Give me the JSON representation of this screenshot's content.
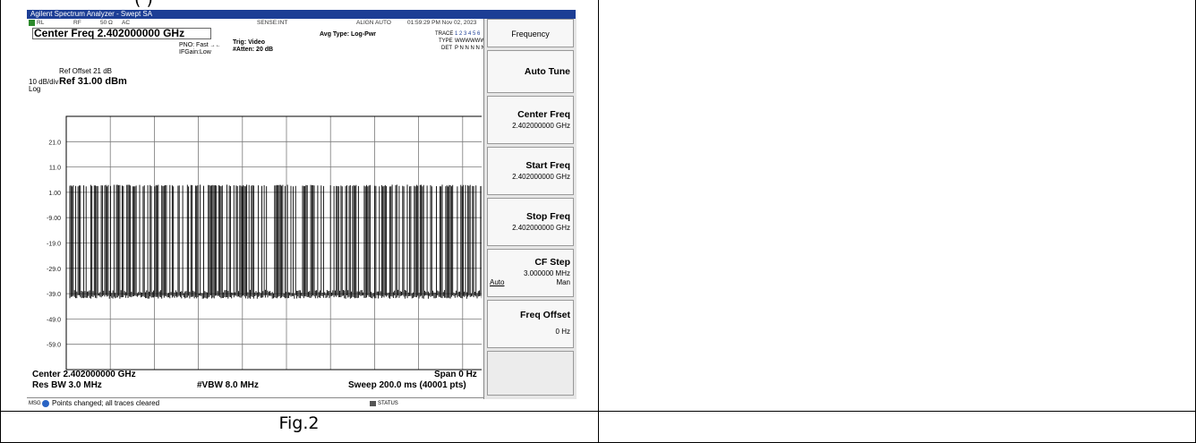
{
  "heading_fragment": "(          )",
  "caption": "Fig.2",
  "analyzer": {
    "window_title": "Agilent Spectrum Analyzer - Swept SA",
    "status": {
      "mode": "RL",
      "rf": "RF",
      "impedance": "50 Ω",
      "coupling": "AC",
      "sense": "SENSE:INT",
      "align": "ALIGN AUTO",
      "datetime": "01:59:29 PM Nov 02, 2023"
    },
    "center_freq_title": "Center Freq 2.402000000 GHz",
    "pno": "PNO: Fast",
    "ifgain": "IFGain:Low",
    "trig": "Trig: Video",
    "atten": "#Atten: 20 dB",
    "avg_type": "Avg Type: Log-Pwr",
    "trace_label": "TRACE",
    "trace_nums": "1 2 3 4 5 6",
    "type_label": "TYPE",
    "type_val": "WWWWWW",
    "det_label": "DET",
    "det_val": "P N N N N N",
    "ref_offset": "Ref Offset 21 dB",
    "ref_level": "Ref 31.00 dBm",
    "scale": "10 dB/div",
    "scale_type": "Log",
    "y_ticks": [
      "21.0",
      "11.0",
      "1.00",
      "-9.00",
      "-19.0",
      "-29.0",
      "-39.0",
      "-49.0",
      "-59.0"
    ],
    "center_bottom": "Center 2.402000000 GHz",
    "span": "Span 0 Hz",
    "res_bw": "Res BW 3.0 MHz",
    "vbw": "#VBW 8.0 MHz",
    "sweep": "Sweep  200.0 ms (40001 pts)",
    "msg_label": "MSG",
    "message": "Points changed; all traces cleared",
    "status_label": "STATUS",
    "panel": {
      "title": "Frequency",
      "auto_tune": "Auto Tune",
      "center_freq_label": "Center Freq",
      "center_freq_val": "2.402000000 GHz",
      "start_freq_label": "Start Freq",
      "start_freq_val": "2.402000000 GHz",
      "stop_freq_label": "Stop Freq",
      "stop_freq_val": "2.402000000 GHz",
      "cf_step_label": "CF Step",
      "cf_step_val": "3.000000 MHz",
      "cf_auto": "Auto",
      "cf_man": "Man",
      "freq_offset_label": "Freq Offset",
      "freq_offset_val": "0 Hz"
    },
    "colors": {
      "titlebar": "#1c3e95",
      "trace": "#000000",
      "grid": "#7a7a7a"
    }
  }
}
